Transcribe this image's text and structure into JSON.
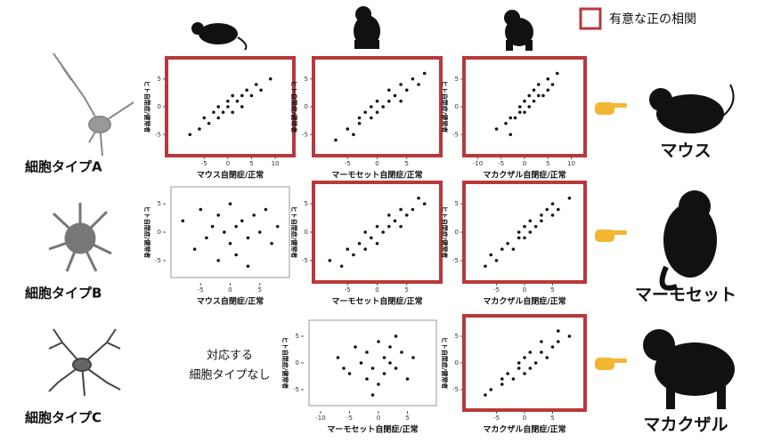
{
  "legend_label": "有意な正の相関",
  "row_labels": [
    "細胞タイプA",
    "細胞タイプB",
    "細胞タイプC"
  ],
  "species": [
    "マウス",
    "マーモセット",
    "マカクザル"
  ],
  "note": [
    "対応する",
    "細胞タイプなし"
  ],
  "chart_data": [
    {
      "type": "scatter",
      "xlabel": "マウス自閉症/正常",
      "ylabel": "ヒト自閉症/健常者",
      "significant": true,
      "color": "#111111",
      "xlim": [
        -12,
        13
      ],
      "ylim": [
        -8,
        8
      ],
      "xticks": [
        -5,
        0,
        5,
        10
      ],
      "yticks": [
        -5,
        0,
        5
      ],
      "x": [
        -8,
        -6,
        -5,
        -4,
        -3,
        -2,
        -2,
        -1,
        0,
        0,
        1,
        1,
        2,
        3,
        3,
        4,
        5,
        6,
        7,
        9
      ],
      "y": [
        -5,
        -4,
        -2,
        -3,
        -1,
        -2,
        0,
        -1,
        0,
        1,
        -1,
        2,
        1,
        2,
        0,
        3,
        2,
        4,
        3,
        5
      ]
    },
    {
      "type": "scatter",
      "xlabel": "マーモセット自閉症/正常",
      "ylabel": "ヒト自閉症/健常者",
      "significant": true,
      "color": "#111111",
      "xlim": [
        -10,
        10
      ],
      "ylim": [
        -8,
        8
      ],
      "xticks": [
        -5,
        0,
        5
      ],
      "yticks": [
        -5,
        0,
        5
      ],
      "x": [
        -7,
        -5,
        -4,
        -3,
        -3,
        -2,
        -1,
        -1,
        0,
        0,
        1,
        2,
        2,
        3,
        4,
        4,
        5,
        6,
        7,
        8
      ],
      "y": [
        -6,
        -4,
        -5,
        -2,
        -3,
        -1,
        -2,
        0,
        -1,
        1,
        0,
        1,
        3,
        2,
        1,
        4,
        3,
        5,
        4,
        6
      ]
    },
    {
      "type": "scatter",
      "xlabel": "マカクザル自閉症/正常",
      "ylabel": "ヒト自閉症/健常者",
      "significant": true,
      "color": "#111111",
      "xlim": [
        -12,
        12
      ],
      "ylim": [
        -8,
        8
      ],
      "xticks": [
        -10,
        -5,
        0,
        5,
        10
      ],
      "yticks": [
        -5,
        0,
        5
      ],
      "x": [
        -6,
        -4,
        -3,
        -3,
        -2,
        -1,
        -1,
        0,
        0,
        1,
        1,
        2,
        2,
        3,
        3,
        4,
        5,
        5,
        6,
        7
      ],
      "y": [
        -4,
        -3,
        -5,
        -2,
        -2,
        -1,
        0,
        -1,
        1,
        0,
        2,
        1,
        3,
        2,
        4,
        2,
        3,
        5,
        4,
        6
      ]
    },
    {
      "type": "scatter",
      "xlabel": "マウス自閉症/正常",
      "ylabel": "ヒト自閉症/健常者",
      "significant": false,
      "color": "#111111",
      "xlim": [
        -10,
        10
      ],
      "ylim": [
        -8,
        8
      ],
      "xticks": [
        -5,
        0,
        5
      ],
      "yticks": [
        -5,
        0,
        5
      ],
      "x": [
        -8,
        -6,
        -5,
        -4,
        -3,
        -2,
        -2,
        -1,
        0,
        0,
        1,
        1,
        2,
        3,
        3,
        4,
        5,
        6,
        7,
        8
      ],
      "y": [
        2,
        -3,
        4,
        -1,
        1,
        -5,
        3,
        0,
        -2,
        5,
        -4,
        1,
        2,
        -1,
        -6,
        3,
        0,
        4,
        -2,
        1
      ]
    },
    {
      "type": "scatter",
      "xlabel": "マーモセット自閉症/正常",
      "ylabel": "ヒト自閉症/健常者",
      "significant": true,
      "color": "#111111",
      "xlim": [
        -10,
        10
      ],
      "ylim": [
        -8,
        8
      ],
      "xticks": [
        -5,
        0,
        5
      ],
      "yticks": [
        -5,
        0,
        5
      ],
      "x": [
        -8,
        -6,
        -5,
        -4,
        -3,
        -2,
        -2,
        -1,
        0,
        0,
        1,
        2,
        2,
        3,
        4,
        4,
        5,
        6,
        7,
        8
      ],
      "y": [
        -5,
        -6,
        -3,
        -4,
        -2,
        -3,
        0,
        -1,
        -2,
        1,
        0,
        1,
        3,
        2,
        1,
        4,
        3,
        4,
        6,
        5
      ]
    },
    {
      "type": "scatter",
      "xlabel": "マカクザル自閉症/正常",
      "ylabel": "ヒト自閉症/健常者",
      "significant": true,
      "color": "#111111",
      "xlim": [
        -10,
        10
      ],
      "ylim": [
        -8,
        8
      ],
      "xticks": [
        -5,
        0,
        5
      ],
      "yticks": [
        -5,
        0,
        5
      ],
      "x": [
        -7,
        -6,
        -5,
        -4,
        -3,
        -2,
        -1,
        -1,
        0,
        0,
        1,
        1,
        2,
        3,
        3,
        4,
        5,
        5,
        6,
        8
      ],
      "y": [
        -6,
        -4,
        -5,
        -3,
        -2,
        -3,
        -1,
        0,
        -1,
        1,
        0,
        2,
        1,
        3,
        2,
        4,
        3,
        5,
        4,
        6
      ]
    },
    {
      "type": "scatter",
      "xlabel": "マーモセット自閉症/正常",
      "ylabel": "ヒト自閉症/健常者",
      "significant": false,
      "color": "#111111",
      "xlim": [
        -12,
        10
      ],
      "ylim": [
        -8,
        8
      ],
      "xticks": [
        -10,
        -5,
        0,
        5
      ],
      "yticks": [
        -5,
        0,
        5
      ],
      "x": [
        -7,
        -5,
        -4,
        -3,
        -2,
        -2,
        -1,
        0,
        0,
        1,
        1,
        2,
        2,
        3,
        4,
        5,
        6,
        -6,
        3,
        -1
      ],
      "y": [
        1,
        -2,
        3,
        0,
        -3,
        2,
        -1,
        4,
        -4,
        1,
        -2,
        3,
        0,
        -1,
        2,
        -3,
        1,
        -1,
        5,
        -6
      ]
    },
    {
      "type": "scatter",
      "xlabel": "マカクザル自閉症/正常",
      "ylabel": "ヒト自閉症/健常者",
      "significant": true,
      "color": "#111111",
      "xlim": [
        -10,
        10
      ],
      "ylim": [
        -8,
        8
      ],
      "xticks": [
        -5,
        0,
        5
      ],
      "yticks": [
        -5,
        0,
        5
      ],
      "x": [
        -7,
        -6,
        -4,
        -4,
        -3,
        -2,
        -1,
        -1,
        0,
        0,
        1,
        1,
        2,
        3,
        3,
        4,
        5,
        6,
        6,
        8
      ],
      "y": [
        -6,
        -5,
        -3,
        -4,
        -2,
        -3,
        -1,
        0,
        -2,
        1,
        -1,
        2,
        0,
        2,
        4,
        1,
        3,
        4,
        6,
        5
      ]
    }
  ]
}
